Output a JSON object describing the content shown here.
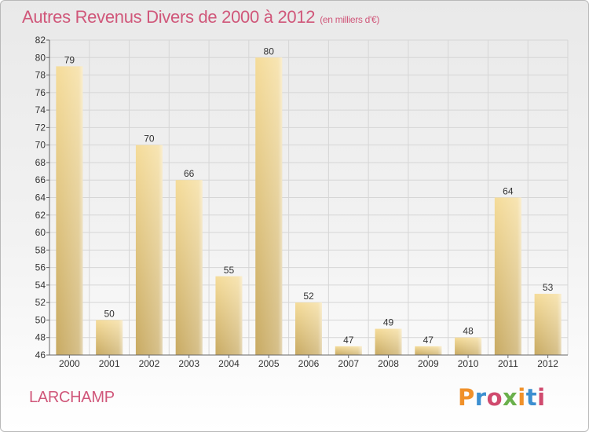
{
  "header": {
    "title": "Autres Revenus Divers de 2000 à 2012",
    "subtitle": "(en milliers d'€)"
  },
  "footer": {
    "commune": "LARCHAMP",
    "logo": "Proxiti"
  },
  "colors": {
    "title": "#d0577a",
    "bar_light": "#f5dc9a",
    "bar_dark": "#c8aa62",
    "grid": "#d6d6d6"
  },
  "chart_data": {
    "type": "bar",
    "title": "Autres Revenus Divers de 2000 à 2012",
    "subtitle": "(en milliers d'€)",
    "categories": [
      "2000",
      "2001",
      "2002",
      "2003",
      "2004",
      "2005",
      "2006",
      "2007",
      "2008",
      "2009",
      "2010",
      "2011",
      "2012"
    ],
    "values": [
      79,
      50,
      70,
      66,
      55,
      80,
      52,
      47,
      49,
      47,
      48,
      64,
      53
    ],
    "data_labels": [
      "79",
      "50",
      "70",
      "66",
      "55",
      "80",
      "52",
      "47",
      "49",
      "47",
      "48",
      "64",
      "53"
    ],
    "ylim": [
      46,
      82
    ],
    "yticks": [
      46,
      48,
      50,
      52,
      54,
      56,
      58,
      60,
      62,
      64,
      66,
      68,
      70,
      72,
      74,
      76,
      78,
      80,
      82
    ],
    "ytick_labels": [
      "46",
      "48",
      "50",
      "52",
      "54",
      "56",
      "58",
      "60",
      "62",
      "64",
      "66",
      "68",
      "70",
      "72",
      "74",
      "76",
      "78",
      "80",
      "82"
    ],
    "grid": true,
    "legend": "none"
  }
}
